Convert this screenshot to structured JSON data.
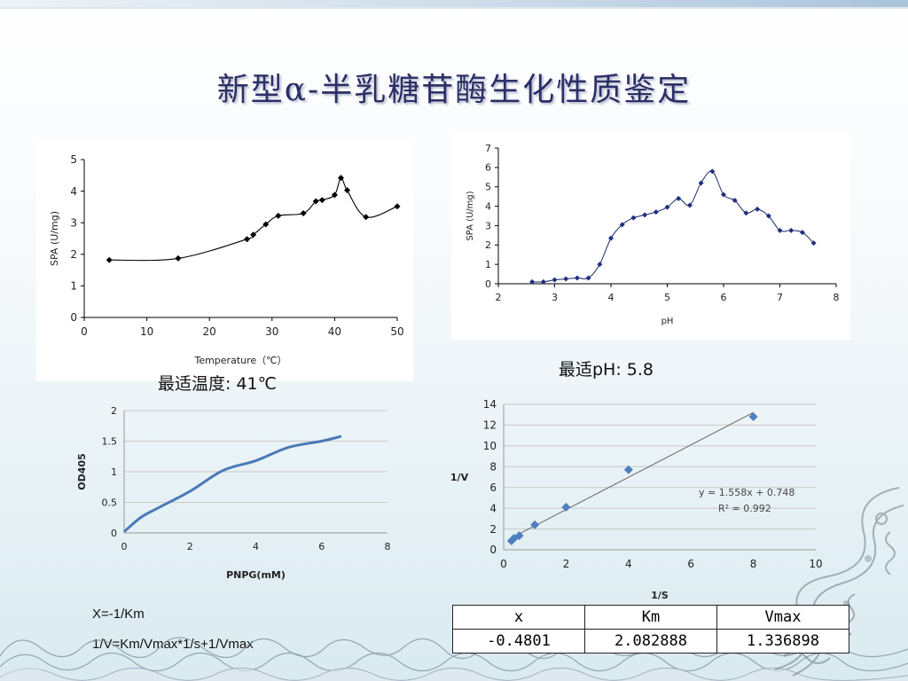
{
  "title": "新型α-半乳糖苷酶生化性质鉴定",
  "labels": {
    "optimal_temp": "最适温度: 41℃",
    "optimal_ph": "最适pH: 5.8"
  },
  "notes": {
    "formula1": "X=-1/Km",
    "formula2": "1/V=Km/Vmax*1/s+1/Vmax"
  },
  "results_table": {
    "headers": [
      "x",
      "Km",
      "Vmax"
    ],
    "values": [
      "-0.4801",
      "2.082888",
      "1.336898"
    ]
  },
  "trendline": {
    "equation": "y = 1.558x + 0.748",
    "r2": "R² = 0.992"
  },
  "chart_data": [
    {
      "type": "line",
      "title": "",
      "xlabel": "Temperature（℃）",
      "ylabel": "SPA (U/mg)",
      "xlim": [
        0,
        50
      ],
      "ylim": [
        0,
        5
      ],
      "xticks": [
        0,
        10,
        20,
        30,
        40,
        50
      ],
      "yticks": [
        0,
        1,
        2,
        3,
        4,
        5
      ],
      "x": [
        4,
        15,
        26,
        27,
        29,
        31,
        35,
        37,
        38,
        40,
        41,
        42,
        45,
        50
      ],
      "y": [
        1.82,
        1.87,
        2.48,
        2.62,
        2.95,
        3.22,
        3.3,
        3.68,
        3.72,
        3.88,
        4.42,
        4.03,
        3.18,
        3.52
      ]
    },
    {
      "type": "line",
      "title": "",
      "xlabel": "pH",
      "ylabel": "SPA (U/mg)",
      "xlim": [
        2,
        8
      ],
      "ylim": [
        0,
        7
      ],
      "xticks": [
        2,
        3,
        4,
        5,
        6,
        7,
        8
      ],
      "yticks": [
        0,
        1,
        2,
        3,
        4,
        5,
        6,
        7
      ],
      "x": [
        2.6,
        2.8,
        3.0,
        3.2,
        3.4,
        3.6,
        3.8,
        4.0,
        4.2,
        4.4,
        4.6,
        4.8,
        5.0,
        5.2,
        5.4,
        5.6,
        5.8,
        6.0,
        6.2,
        6.4,
        6.6,
        6.8,
        7.0,
        7.2,
        7.4,
        7.6
      ],
      "y": [
        0.1,
        0.1,
        0.2,
        0.25,
        0.3,
        0.3,
        1.0,
        2.35,
        3.05,
        3.4,
        3.55,
        3.7,
        3.95,
        4.4,
        4.05,
        5.2,
        5.8,
        4.6,
        4.3,
        3.65,
        3.85,
        3.5,
        2.75,
        2.75,
        2.65,
        2.1
      ]
    },
    {
      "type": "line",
      "title": "",
      "xlabel": "PNPG(mM)",
      "ylabel": "OD405",
      "xlim": [
        0,
        8
      ],
      "ylim": [
        0,
        2
      ],
      "xticks": [
        0,
        2,
        4,
        6,
        8
      ],
      "yticks": [
        0,
        0.5,
        1,
        1.5,
        2
      ],
      "x": [
        0,
        0.5,
        1,
        2,
        3,
        4,
        5,
        6,
        6.6
      ],
      "y": [
        0.02,
        0.25,
        0.4,
        0.68,
        1.02,
        1.18,
        1.4,
        1.5,
        1.58
      ]
    },
    {
      "type": "scatter",
      "title": "",
      "xlabel": "1/S",
      "ylabel": "1/V",
      "xlim": [
        0,
        10
      ],
      "ylim": [
        0,
        14
      ],
      "xticks": [
        0,
        2,
        4,
        6,
        8,
        10
      ],
      "yticks": [
        0,
        2,
        4,
        6,
        8,
        10,
        12,
        14
      ],
      "x": [
        0.25,
        0.33,
        0.5,
        1,
        2,
        4,
        8
      ],
      "y": [
        0.85,
        1.1,
        1.35,
        2.4,
        4.1,
        7.7,
        12.8
      ],
      "trend": {
        "slope": 1.558,
        "intercept": 0.748,
        "x_range": [
          0.2,
          8
        ]
      }
    }
  ]
}
